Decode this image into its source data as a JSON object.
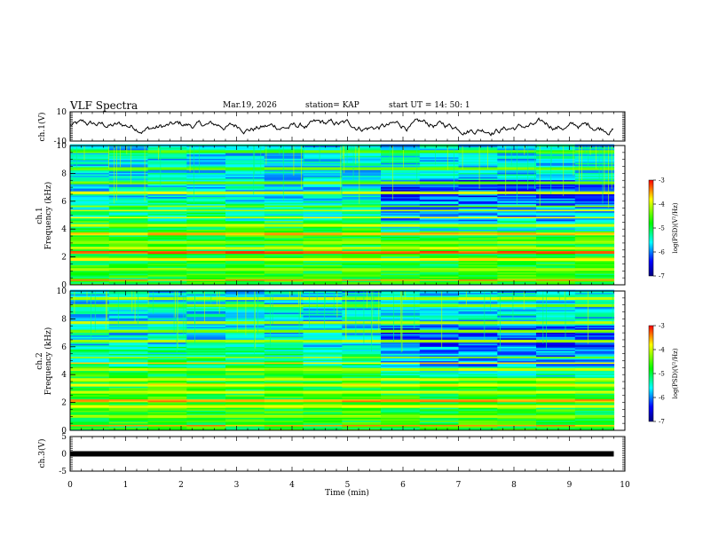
{
  "header": {
    "title": "VLF Spectra",
    "date": "Mar.19, 2026",
    "station": "station= KAP",
    "start": "start  UT =   14: 50: 1"
  },
  "chart_data": {
    "type": "heatmap",
    "title": "VLF Spectra",
    "xlabel": "Time  (min)",
    "xlim": [
      0,
      10
    ],
    "xticks": [
      "0",
      "1",
      "2",
      "3",
      "4",
      "5",
      "6",
      "7",
      "8",
      "9",
      "10"
    ],
    "data_end_min": 9.8,
    "panels": [
      {
        "name": "ch1-waveform",
        "type": "line",
        "ylabel": "ch.1(V)",
        "ylim": [
          -10,
          10
        ],
        "yticks": [
          "10",
          "-10"
        ]
      },
      {
        "name": "ch1-spectrogram",
        "type": "heatmap",
        "ylabel_line1": "ch.1",
        "ylabel_line2": "Frequency  (kHz)",
        "ylim": [
          0,
          10
        ],
        "yticks": [
          "0",
          "2",
          "4",
          "6",
          "8",
          "10"
        ],
        "change_time_min": 5.4,
        "bands_khz": [
          {
            "f": 0.3,
            "level": -3.5
          },
          {
            "f": 1.1,
            "level": -4.2
          },
          {
            "f": 1.8,
            "level": -3.8
          },
          {
            "f": 2.3,
            "level": -3.3
          },
          {
            "f": 2.6,
            "level": -4.0
          },
          {
            "f": 3.0,
            "level": -4.2
          },
          {
            "f": 3.6,
            "level": -3.6
          },
          {
            "f": 4.2,
            "level": -4.0
          },
          {
            "f": 4.8,
            "level": -3.9
          },
          {
            "f": 5.3,
            "level": -4.0
          },
          {
            "f": 5.6,
            "level": -4.3
          },
          {
            "f": 6.6,
            "level": -4.0
          },
          {
            "f": 7.3,
            "level": -4.4
          },
          {
            "f": 8.3,
            "level": -4.4
          },
          {
            "f": 9.5,
            "level": -4.5
          }
        ]
      },
      {
        "name": "ch2-spectrogram",
        "type": "heatmap",
        "ylabel_line1": "ch.2",
        "ylabel_line2": "Frequency  (kHz)",
        "ylim": [
          0,
          10
        ],
        "yticks": [
          "0",
          "2",
          "4",
          "6",
          "8",
          "10"
        ],
        "change_time_min": 5.4,
        "bands_khz": [
          {
            "f": 0.3,
            "level": -3.5
          },
          {
            "f": 1.0,
            "level": -4.2
          },
          {
            "f": 1.7,
            "level": -3.9
          },
          {
            "f": 2.1,
            "level": -3.5
          },
          {
            "f": 2.7,
            "level": -4.0
          },
          {
            "f": 3.2,
            "level": -3.8
          },
          {
            "f": 3.6,
            "level": -4.0
          },
          {
            "f": 4.3,
            "level": -4.1
          },
          {
            "f": 4.8,
            "level": -3.7
          },
          {
            "f": 5.2,
            "level": -4.2
          },
          {
            "f": 6.4,
            "level": -4.2
          },
          {
            "f": 7.1,
            "level": -4.3
          },
          {
            "f": 7.7,
            "level": -4.1
          },
          {
            "f": 8.9,
            "level": -4.3
          },
          {
            "f": 9.4,
            "level": -4.1
          }
        ]
      },
      {
        "name": "ch3-waveform",
        "type": "line",
        "ylabel": "ch.3(V)",
        "ylim": [
          -5,
          5
        ],
        "yticks": [
          "5",
          "0",
          "-5"
        ],
        "line_value_v": 0
      }
    ],
    "colorbar": {
      "label": "log(PSD)(V²/Hz)",
      "range": [
        -7,
        -3
      ],
      "ticks": [
        "-3",
        "-4",
        "-5",
        "-6",
        "-7"
      ],
      "colors": [
        "#ff0000",
        "#ffff00",
        "#00ff00",
        "#00ffff",
        "#0000ff",
        "#000080"
      ]
    }
  }
}
